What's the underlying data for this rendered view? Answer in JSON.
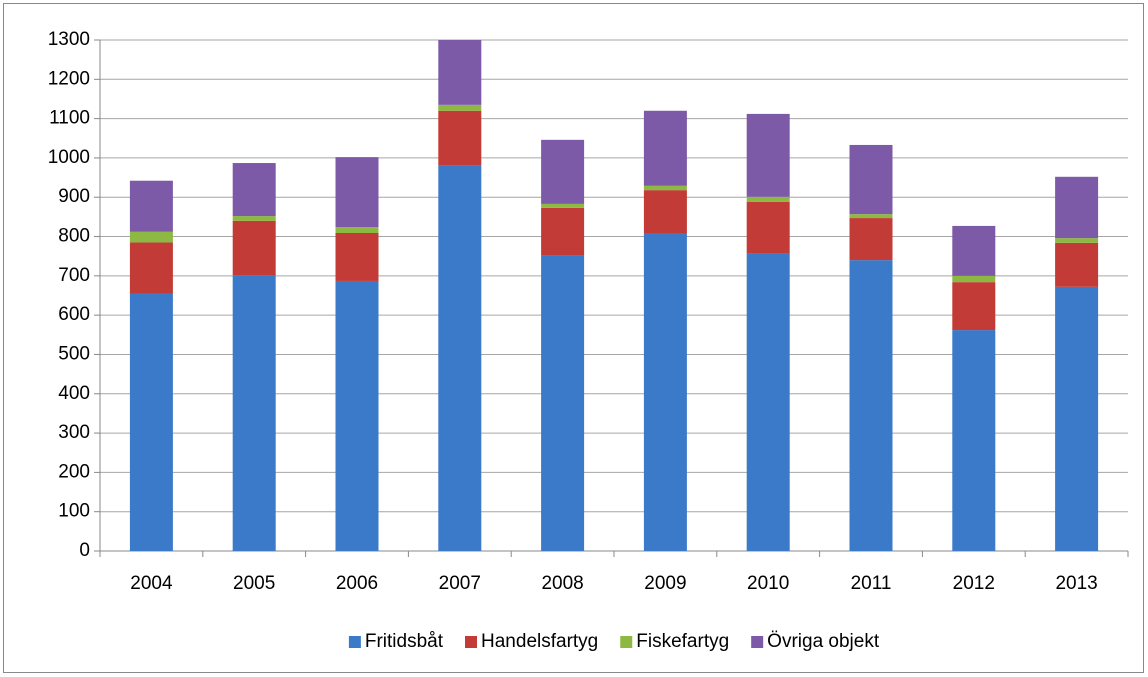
{
  "chart_data": {
    "type": "stacked-bar",
    "categories": [
      "2004",
      "2005",
      "2006",
      "2007",
      "2008",
      "2009",
      "2010",
      "2011",
      "2012",
      "2013"
    ],
    "series": [
      {
        "name": "Fritidsbåt",
        "color": "#3b7ac9",
        "values": [
          655,
          702,
          687,
          980,
          751,
          809,
          756,
          740,
          562,
          672
        ]
      },
      {
        "name": "Handelsfartyg",
        "color": "#c33b36",
        "values": [
          130,
          138,
          122,
          140,
          122,
          109,
          132,
          107,
          122,
          112
        ]
      },
      {
        "name": "Fiskefartyg",
        "color": "#8db842",
        "values": [
          27,
          12,
          15,
          15,
          10,
          11,
          13,
          10,
          16,
          12
        ]
      },
      {
        "name": "Övriga objekt",
        "color": "#7d5aa8",
        "values": [
          130,
          135,
          178,
          165,
          163,
          191,
          211,
          176,
          127,
          156
        ]
      }
    ],
    "ylim": [
      0,
      1300
    ],
    "yticks": [
      0,
      100,
      200,
      300,
      400,
      500,
      600,
      700,
      800,
      900,
      1000,
      1100,
      1200,
      1300
    ],
    "grid": true,
    "legend": "bottom"
  }
}
